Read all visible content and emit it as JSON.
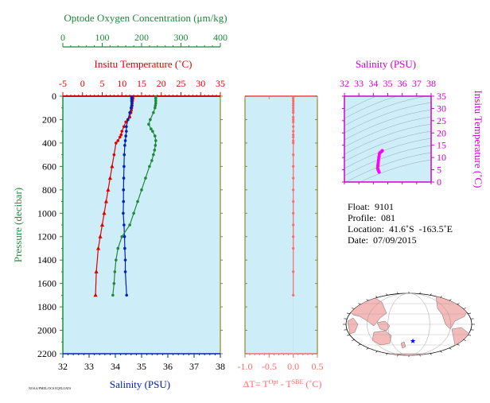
{
  "colors": {
    "panel_bg": "#cdeef8",
    "temperature": "#e00000",
    "salinity": "#0020c0",
    "oxygen": "#20883a",
    "pressure_axis": "#1c8f3c",
    "delta_t": "#ff6a6a",
    "ts_axis": "#d000d0",
    "ts_trace": "#ff00ff"
  },
  "texts": {
    "oxygen_title": "Optode Oxygen Concentration (μm/kg)",
    "temp_title": "Insitu Temperature (˚C)",
    "salinity_bottom_label": "Salinity (PSU)",
    "pressure_label": "Pressure (decibar)",
    "delta_label_prefix": "ΔT= T",
    "delta_label_sup1": "Opt",
    "delta_label_mid": " - T",
    "delta_label_sup2": "SBE",
    "delta_label_suffix": " (˚C)",
    "ts_salinity_title": "Salinity (PSU)",
    "ts_temp_label": "Insitu Temperature (˚C)",
    "footer_code": "NOAA/PMEL/OCS EQFLOATS"
  },
  "info": {
    "float": "Float:  9101",
    "profile": "Profile:  081",
    "location": "Location:  41.6˚S  -163.5˚E",
    "date": "Date:  07/09/2015"
  },
  "chart_data": [
    {
      "type": "line",
      "title": "Profile panel",
      "ylabel": "Pressure (decibar)",
      "ylim": [
        2200,
        0
      ],
      "yticks": [
        0,
        200,
        400,
        600,
        800,
        1000,
        1200,
        1400,
        1600,
        1800,
        2000,
        2200
      ],
      "axes": {
        "temperature": {
          "label": "Insitu Temperature (˚C)",
          "lim": [
            -5,
            35
          ],
          "ticks": [
            -5,
            0,
            5,
            10,
            15,
            20,
            25,
            30,
            35
          ]
        },
        "salinity": {
          "label": "Salinity (PSU)",
          "lim": [
            32,
            38
          ],
          "ticks": [
            32,
            33,
            34,
            35,
            36,
            37,
            38
          ]
        },
        "oxygen": {
          "label": "Optode Oxygen Concentration (μm/kg)",
          "lim": [
            0,
            400
          ],
          "ticks": [
            0,
            100,
            200,
            300,
            400
          ]
        }
      },
      "series": [
        {
          "name": "Insitu Temperature (˚C)",
          "axis": "temperature",
          "x": [
            12.8,
            12.8,
            12.7,
            12.6,
            12.6,
            12.5,
            12.4,
            12.3,
            12.0,
            11.5,
            11.0,
            10.5,
            10.0,
            9.8,
            9.5,
            9.0,
            8.5,
            8.0,
            7.5,
            7.0,
            6.5,
            6.0,
            5.5,
            5.0,
            4.5,
            4.0,
            3.5,
            3.3
          ],
          "y": [
            5,
            20,
            40,
            60,
            80,
            100,
            120,
            140,
            180,
            200,
            220,
            260,
            300,
            330,
            350,
            380,
            400,
            500,
            600,
            700,
            800,
            900,
            1000,
            1100,
            1200,
            1300,
            1500,
            1700
          ]
        },
        {
          "name": "Salinity (PSU)",
          "axis": "salinity",
          "x": [
            34.62,
            34.62,
            34.62,
            34.63,
            34.62,
            34.6,
            34.55,
            34.48,
            34.42,
            34.42,
            34.4,
            34.38,
            34.36,
            34.34,
            34.33,
            34.32,
            34.31,
            34.31,
            34.3,
            34.33,
            34.35,
            34.36,
            34.38,
            34.38,
            34.43
          ],
          "y": [
            5,
            20,
            40,
            60,
            80,
            100,
            140,
            200,
            260,
            300,
            340,
            380,
            420,
            500,
            600,
            700,
            800,
            900,
            1000,
            1100,
            1200,
            1300,
            1400,
            1500,
            1700
          ]
        },
        {
          "name": "Optode Oxygen Concentration (μm/kg)",
          "axis": "oxygen",
          "x": [
            236,
            236,
            236,
            236,
            235,
            234,
            230,
            222,
            218,
            224,
            228,
            234,
            236,
            235,
            233,
            230,
            226,
            220,
            210,
            200,
            190,
            180,
            170,
            150,
            140,
            135,
            132,
            130,
            127
          ],
          "y": [
            5,
            20,
            40,
            60,
            80,
            100,
            140,
            200,
            240,
            280,
            300,
            340,
            380,
            420,
            460,
            500,
            550,
            600,
            700,
            800,
            900,
            1000,
            1100,
            1200,
            1300,
            1400,
            1500,
            1600,
            1700
          ]
        }
      ]
    },
    {
      "type": "line",
      "title": "ΔT panel",
      "xlabel": "ΔT= TOpt - TSBE (˚C)",
      "xlim": [
        -1.0,
        0.5
      ],
      "xticks": [
        -1.0,
        -0.5,
        0.0,
        0.5
      ],
      "ylim": [
        2200,
        0
      ],
      "series": [
        {
          "name": "ΔT",
          "x": [
            0,
            0,
            0,
            0,
            0,
            0,
            0,
            0,
            0,
            0,
            0,
            0,
            0,
            0,
            0,
            0,
            0,
            0,
            0,
            0,
            0,
            0,
            0,
            0,
            0,
            0,
            0,
            0
          ],
          "y": [
            5,
            20,
            40,
            60,
            80,
            100,
            120,
            140,
            180,
            200,
            220,
            260,
            300,
            330,
            350,
            380,
            400,
            500,
            600,
            700,
            800,
            900,
            1000,
            1100,
            1200,
            1300,
            1500,
            1700
          ]
        }
      ]
    },
    {
      "type": "line",
      "title": "T-S diagram",
      "xlabel": "Salinity (PSU)",
      "ylabel": "Insitu Temperature (˚C)",
      "xlim": [
        32,
        38
      ],
      "xticks": [
        32,
        33,
        34,
        35,
        36,
        37,
        38
      ],
      "ylim": [
        0,
        35
      ],
      "yticks": [
        0,
        5,
        10,
        15,
        20,
        25,
        30,
        35
      ],
      "series": [
        {
          "name": "T-S",
          "x": [
            34.62,
            34.61,
            34.58,
            34.52,
            34.46,
            34.42,
            34.4,
            34.38,
            34.36,
            34.34,
            34.32,
            34.31,
            34.3,
            34.33,
            34.36,
            34.4
          ],
          "y": [
            12.8,
            12.7,
            12.5,
            12.2,
            12.0,
            11.5,
            10.5,
            10.0,
            9.0,
            8.0,
            7.0,
            6.5,
            5.5,
            5.0,
            4.5,
            4.0
          ]
        }
      ]
    }
  ]
}
